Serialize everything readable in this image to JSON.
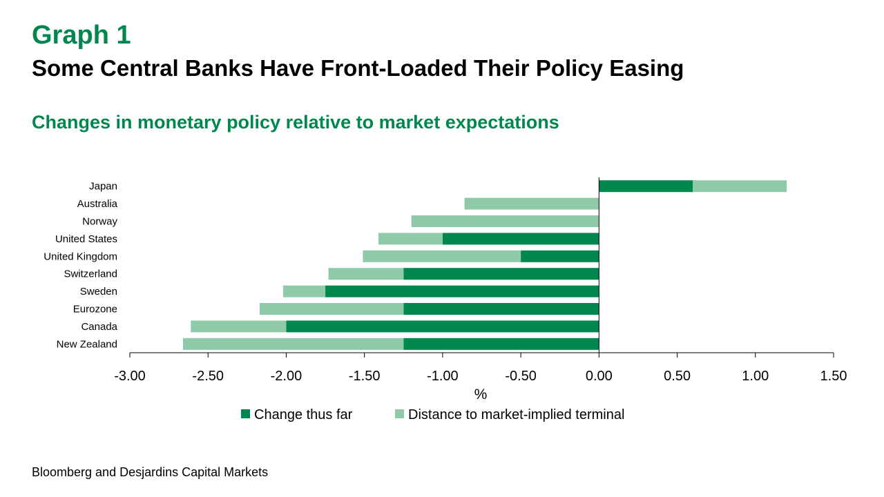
{
  "header": {
    "graph_number": "Graph 1",
    "title": "Some Central Banks Have Front-Loaded Their Policy Easing",
    "subtitle": "Changes in monetary policy relative to market expectations"
  },
  "source": "Bloomberg and Desjardins Capital Markets",
  "colors": {
    "accent": "#00874d",
    "change_thus_far": "#00874d",
    "distance_to_terminal": "#8fcaa8"
  },
  "chart_data": {
    "type": "bar",
    "orientation": "horizontal",
    "stacked": true,
    "categories": [
      "Japan",
      "Australia",
      "Norway",
      "United States",
      "United Kingdom",
      "Switzerland",
      "Sweden",
      "Eurozone",
      "Canada",
      "New Zealand"
    ],
    "series": [
      {
        "name": "Change thus far",
        "color": "#00874d",
        "values": [
          0.6,
          0.0,
          0.0,
          -1.0,
          -0.5,
          -1.25,
          -1.75,
          -1.25,
          -2.0,
          -1.25
        ]
      },
      {
        "name": "Distance to market-implied terminal",
        "color": "#8fcaa8",
        "values": [
          0.6,
          -0.86,
          -1.2,
          -0.41,
          -1.01,
          -0.48,
          -0.27,
          -0.92,
          -0.61,
          -1.41
        ]
      }
    ],
    "xlabel": "%",
    "xlim": [
      -3.0,
      1.5
    ],
    "xticks": [
      -3.0,
      -2.5,
      -2.0,
      -1.5,
      -1.0,
      -0.5,
      0.0,
      0.5,
      1.0,
      1.5
    ],
    "xtick_labels": [
      "-3.00",
      "-2.50",
      "-2.00",
      "-1.50",
      "-1.00",
      "-0.50",
      "0.00",
      "0.50",
      "1.00",
      "1.50"
    ],
    "grid": false,
    "legend_position": "bottom"
  }
}
